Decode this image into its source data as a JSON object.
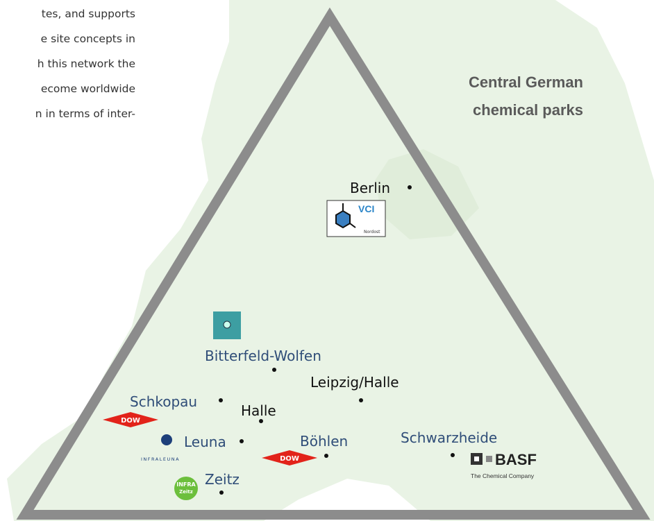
{
  "paragraph": {
    "lines": [
      "tes, and supports",
      "e site concepts in",
      "h this network the",
      "ecome worldwide",
      "n in terms of inter-"
    ]
  },
  "title": {
    "lines": [
      "Central German",
      "chemical parks"
    ]
  },
  "locations": [
    {
      "name": "Berlin"
    },
    {
      "name": "Bitterfeld-Wolfen"
    },
    {
      "name": "Leipzig/Halle"
    },
    {
      "name": "Schkopau"
    },
    {
      "name": "Halle"
    },
    {
      "name": "Leuna"
    },
    {
      "name": "Böhlen"
    },
    {
      "name": "Schwarzheide"
    },
    {
      "name": "Zeitz"
    }
  ],
  "logos": {
    "vci": {
      "name": "VCI",
      "region": "Nordost"
    },
    "dow_schkopau": "DOW",
    "dow_boehlen": "DOW",
    "infraleuna": "INFRALEUNA",
    "infra_zeitz": [
      "INFRA",
      "Zeitz"
    ],
    "basf": {
      "name": "BASF",
      "tagline": "The Chemical Company"
    }
  }
}
